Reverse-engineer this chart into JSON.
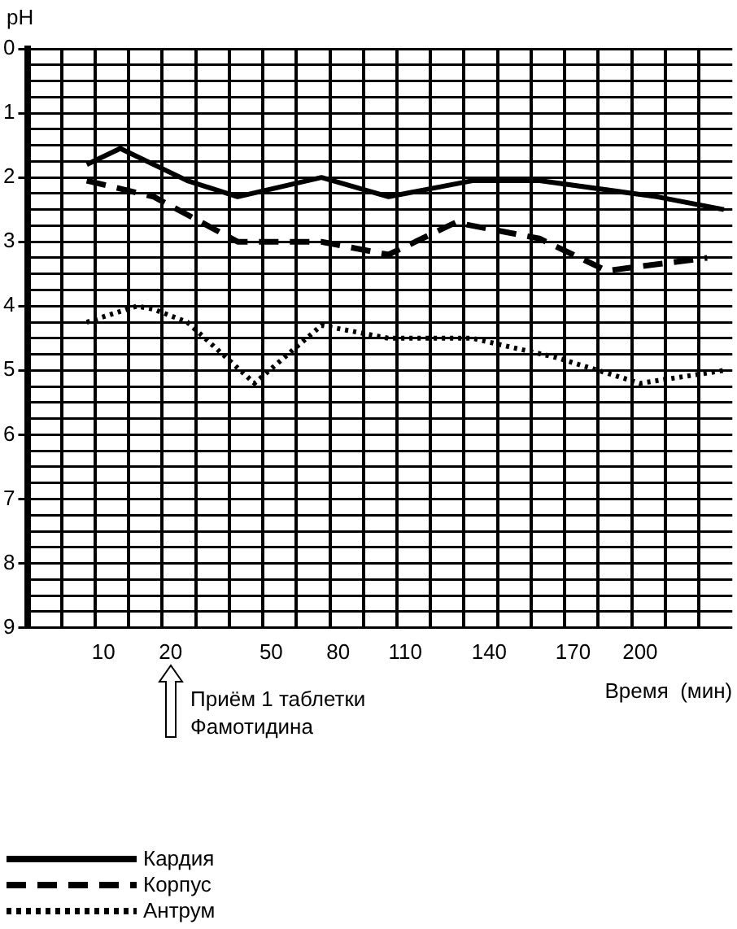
{
  "chart_data": {
    "type": "line",
    "ylabel": "pH",
    "xlabel": "Время  (мин)",
    "categories": [
      null,
      null,
      null,
      null,
      "10",
      null,
      null,
      null,
      "20",
      null,
      null,
      null,
      null,
      null,
      "50",
      null,
      null,
      null,
      "80",
      null,
      null,
      null,
      "110",
      null,
      null,
      null,
      null,
      "140",
      null,
      null,
      null,
      null,
      "170",
      null,
      null,
      null,
      "200",
      null,
      null,
      null,
      null,
      null
    ],
    "series": [
      {
        "name": "Кардия",
        "color": "#000000",
        "line_style": "solid",
        "values": [
          null,
          null,
          null,
          1.8,
          null,
          1.55,
          null,
          null,
          null,
          2.05,
          null,
          null,
          2.3,
          null,
          null,
          null,
          null,
          2.0,
          null,
          null,
          null,
          2.3,
          null,
          null,
          null,
          null,
          2.05,
          null,
          null,
          null,
          2.05,
          null,
          null,
          null,
          null,
          null,
          null,
          2.3,
          null,
          null,
          null,
          2.5
        ]
      },
      {
        "name": "Корпус",
        "color": "#000000",
        "line_style": "dashed",
        "values": [
          null,
          null,
          null,
          2.05,
          null,
          null,
          null,
          2.3,
          null,
          null,
          null,
          null,
          3.0,
          null,
          null,
          null,
          null,
          3.0,
          null,
          null,
          null,
          3.2,
          null,
          null,
          null,
          2.7,
          null,
          null,
          null,
          null,
          2.95,
          null,
          null,
          null,
          3.45,
          null,
          null,
          null,
          null,
          null,
          3.25,
          null
        ]
      },
      {
        "name": "Антрум",
        "color": "#000000",
        "line_style": "dotted",
        "values": [
          null,
          null,
          null,
          4.25,
          null,
          null,
          4.0,
          4.05,
          null,
          4.25,
          null,
          null,
          null,
          5.2,
          null,
          null,
          null,
          4.3,
          null,
          null,
          null,
          4.5,
          null,
          null,
          null,
          null,
          4.5,
          null,
          null,
          null,
          null,
          4.8,
          null,
          null,
          null,
          null,
          5.2,
          null,
          null,
          null,
          null,
          5.0
        ]
      }
    ],
    "ylim": [
      9,
      0
    ],
    "yticks": [
      0,
      {
        "value": 0.25,
        "label": null
      },
      {
        "value": 0.5,
        "label": null
      },
      {
        "value": 0.75,
        "label": null
      },
      1,
      {
        "value": 1.25,
        "label": null
      },
      {
        "value": 1.5,
        "label": null
      },
      {
        "value": 1.75,
        "label": null
      },
      2,
      {
        "value": 2.25,
        "label": null
      },
      {
        "value": 2.5,
        "label": null
      },
      {
        "value": 2.75,
        "label": null
      },
      3,
      {
        "value": 3.25,
        "label": null
      },
      {
        "value": 3.5,
        "label": null
      },
      {
        "value": 3.75,
        "label": null
      },
      4,
      {
        "value": 4.25,
        "label": null
      },
      {
        "value": 4.5,
        "label": null
      },
      {
        "value": 4.75,
        "label": null
      },
      5,
      {
        "value": 5.25,
        "label": null
      },
      {
        "value": 5.5,
        "label": null
      },
      {
        "value": 5.75,
        "label": null
      },
      6,
      {
        "value": 6.25,
        "label": null
      },
      {
        "value": 6.5,
        "label": null
      },
      {
        "value": 6.75,
        "label": null
      },
      7,
      {
        "value": 7.25,
        "label": null
      },
      {
        "value": 7.5,
        "label": null
      },
      {
        "value": 7.75,
        "label": null
      },
      8,
      {
        "value": 8.25,
        "label": null
      },
      {
        "value": 8.5,
        "label": null
      },
      {
        "value": 8.75,
        "label": null
      },
      9
    ],
    "annotations": [
      "Приём 1 таблетки\nФамотидина"
    ],
    "grid": true,
    "legend": "bottom left",
    "marker": "none"
  }
}
